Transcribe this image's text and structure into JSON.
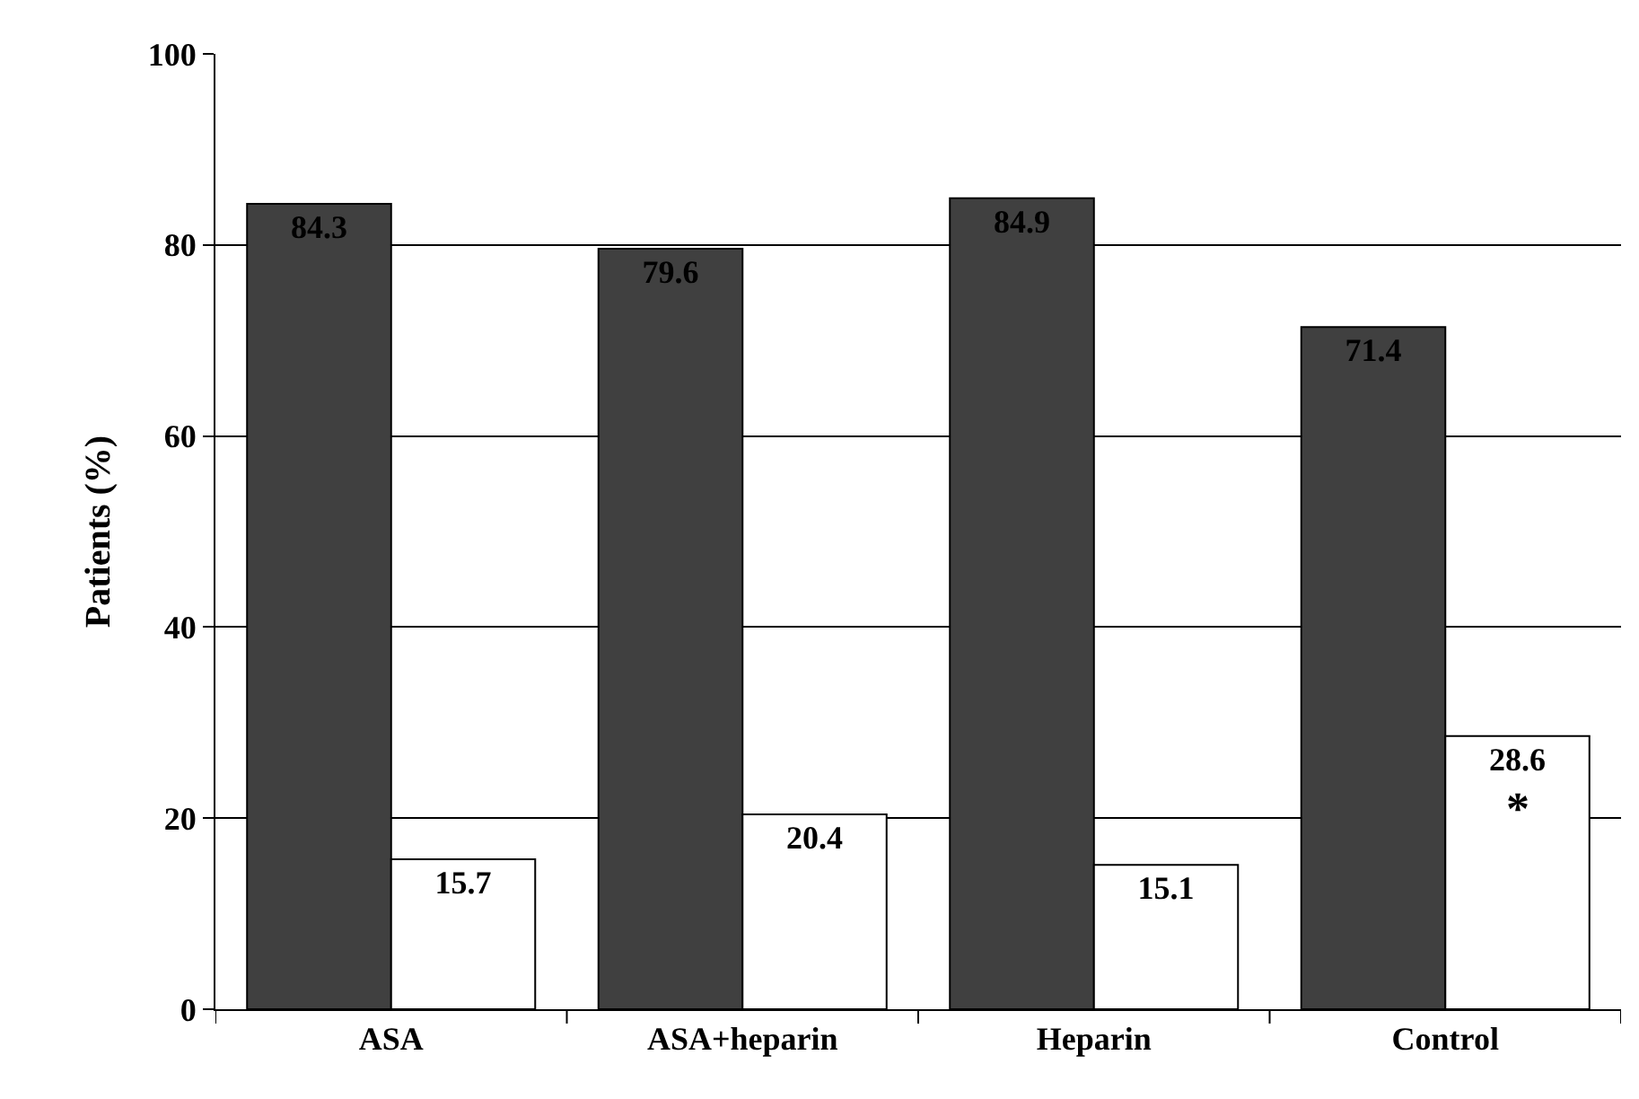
{
  "chart_data": {
    "type": "bar",
    "ylabel": "Patients (%)",
    "categories": [
      "ASA",
      "ASA+heparin",
      "Heparin",
      "Control"
    ],
    "series": [
      {
        "color": "#404040",
        "values": [
          84.3,
          79.6,
          84.9,
          71.4
        ]
      },
      {
        "color": "#ffffff",
        "values": [
          15.7,
          20.4,
          15.1,
          28.6
        ]
      }
    ],
    "ylim": [
      0,
      100
    ],
    "yticks": [
      0,
      20,
      40,
      60,
      80,
      100
    ],
    "grid": "y",
    "data_labels": true,
    "annotations": [
      {
        "text": "*",
        "x": "Control",
        "y": 21
      }
    ]
  }
}
